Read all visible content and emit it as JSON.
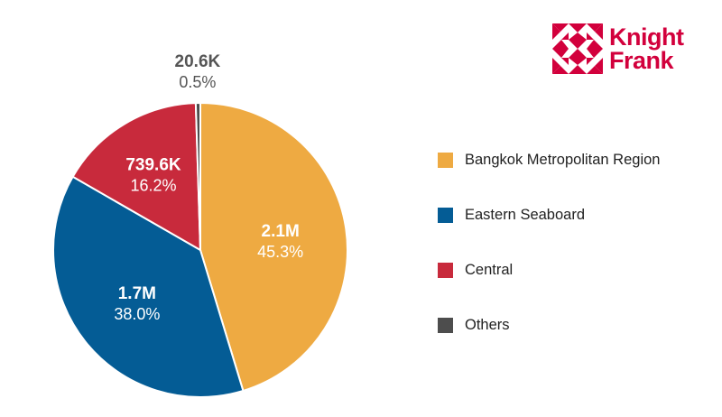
{
  "brand": {
    "name_line1": "Knight",
    "name_line2": "Frank",
    "color": "#d2003c"
  },
  "chart_data": {
    "type": "pie",
    "start_angle_deg": 0,
    "direction": "clockwise",
    "slices": [
      {
        "category": "Bangkok Metropolitan Region",
        "value_label": "2.1M",
        "percent": 45.3,
        "percent_label": "45.3%",
        "color": "#eeaa42"
      },
      {
        "category": "Eastern Seaboard",
        "value_label": "1.7M",
        "percent": 38.0,
        "percent_label": "38.0%",
        "color": "#045c95"
      },
      {
        "category": "Central",
        "value_label": "739.6K",
        "percent": 16.2,
        "percent_label": "16.2%",
        "color": "#c82a3c"
      },
      {
        "category": "Others",
        "value_label": "20.6K",
        "percent": 0.5,
        "percent_label": "0.5%",
        "color": "#4d4d4d"
      }
    ],
    "legend_position": "right"
  }
}
